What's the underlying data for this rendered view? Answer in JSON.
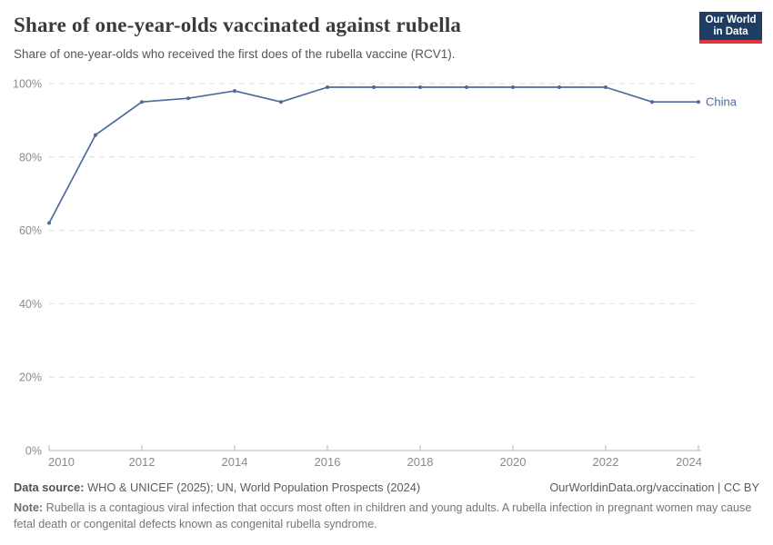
{
  "header": {
    "title": "Share of one-year-olds vaccinated against rubella",
    "subtitle": "Share of one-year-olds who received the first does of the rubella vaccine (RCV1).",
    "logo": {
      "line1": "Our World",
      "line2": "in Data",
      "bg_color": "#1d3d63",
      "accent_color": "#e0363d"
    }
  },
  "chart_data": {
    "type": "line",
    "title": "Share of one-year-olds vaccinated against rubella",
    "xlabel": "",
    "ylabel": "",
    "x": [
      2010,
      2011,
      2012,
      2013,
      2014,
      2015,
      2016,
      2017,
      2018,
      2019,
      2020,
      2021,
      2022,
      2023,
      2024
    ],
    "series": [
      {
        "name": "China",
        "values": [
          62,
          86,
          95,
          96,
          98,
          95,
          99,
          99,
          99,
          99,
          99,
          99,
          99,
          95,
          95
        ],
        "color": "#4c6a9c"
      }
    ],
    "ylim": [
      0,
      100
    ],
    "yticks": [
      0,
      20,
      40,
      60,
      80,
      100
    ],
    "ytick_suffix": "%",
    "xticks": [
      2010,
      2012,
      2014,
      2016,
      2018,
      2020,
      2022,
      2024
    ],
    "grid": "horizontal-dashed",
    "legend_position": "end-of-line-label"
  },
  "footer": {
    "datasource_label": "Data source:",
    "datasource_text": " WHO & UNICEF (2025); UN, World Population Prospects (2024)",
    "attribution": "OurWorldinData.org/vaccination | CC BY",
    "note_label": "Note:",
    "note_text": " Rubella is a contagious viral infection that occurs most often in children and young adults. A rubella infection in pregnant women may cause fetal death or congenital defects known as congenital rubella syndrome."
  }
}
